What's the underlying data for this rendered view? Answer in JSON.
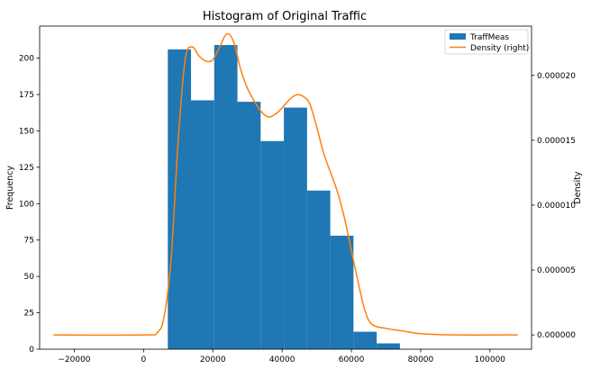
{
  "chart_data": {
    "type": "histogram",
    "title": "Histogram of Original Traffic",
    "xlim": [
      -30000,
      112000
    ],
    "x_ticks": [
      -20000,
      0,
      20000,
      40000,
      60000,
      80000,
      100000
    ],
    "x_tick_labels": [
      "−20000",
      "0",
      "20000",
      "40000",
      "60000",
      "80000",
      "100000"
    ],
    "left_axis": {
      "label": "Frequency",
      "ylim": [
        0,
        222
      ],
      "ticks": [
        0,
        25,
        50,
        75,
        100,
        125,
        150,
        175,
        200
      ],
      "tick_labels": [
        "0",
        "25",
        "50",
        "75",
        "100",
        "125",
        "150",
        "175",
        "200"
      ]
    },
    "right_axis": {
      "label": "Density",
      "ylim": [
        -1.1e-06,
        2.38e-05
      ],
      "ticks": [
        0,
        5e-06,
        1e-05,
        1.5e-05,
        2e-05
      ],
      "tick_labels": [
        "0.000000",
        "0.000005",
        "0.000010",
        "0.000015",
        "0.000020"
      ]
    },
    "histogram": {
      "name": "TraffMeas",
      "color": "#1f77b4",
      "bin_edges": [
        7000,
        13700,
        20400,
        27100,
        33800,
        40500,
        47200,
        53900,
        60600,
        67300,
        74000
      ],
      "counts": [
        206,
        171,
        209,
        170,
        143,
        166,
        109,
        78,
        12,
        4
      ]
    },
    "density": {
      "name": "Density (right)",
      "color": "#ff7f0e",
      "x": [
        -26000,
        0,
        4000,
        6000,
        8000,
        10000,
        12000,
        14000,
        16000,
        18000,
        20000,
        22000,
        24000,
        26000,
        28000,
        30000,
        32000,
        34000,
        36000,
        38000,
        40000,
        42000,
        44000,
        46000,
        48000,
        50000,
        52000,
        54000,
        56000,
        58000,
        60000,
        62000,
        64000,
        66000,
        70000,
        75000,
        80000,
        90000,
        108000
      ],
      "y": [
        0,
        0,
        2e-07,
        1.5e-06,
        6e-06,
        1.5e-05,
        2.12e-05,
        2.22e-05,
        2.15e-05,
        2.11e-05,
        2.12e-05,
        2.22e-05,
        2.32e-05,
        2.26e-05,
        2.05e-05,
        1.9e-05,
        1.8e-05,
        1.72e-05,
        1.68e-05,
        1.7e-05,
        1.75e-05,
        1.81e-05,
        1.85e-05,
        1.84e-05,
        1.78e-05,
        1.6e-05,
        1.4e-05,
        1.25e-05,
        1.1e-05,
        9e-06,
        6.5e-06,
        4e-06,
        1.8e-06,
        8e-07,
        5e-07,
        3e-07,
        1e-07,
        0,
        0
      ]
    },
    "legend": {
      "position": "top-right",
      "entries": [
        "TraffMeas",
        "Density (right)"
      ]
    }
  }
}
